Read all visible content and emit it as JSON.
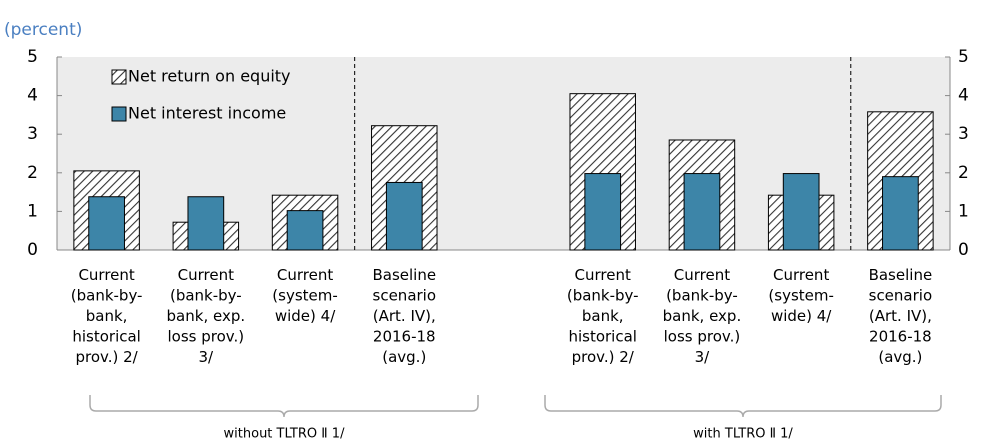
{
  "chart_data": {
    "type": "bar",
    "subtitle": "(percent)",
    "categories": [
      "Current\n(bank-by-\nbank,\nhistorical\nprov.) 2/",
      "Current\n(bank-by-\nbank, exp.\nloss prov.)\n3/",
      "Current\n(system-\nwide) 4/",
      "Baseline\nscenario\n(Art. IV),\n2016-18\n(avg.)",
      null,
      "Current\n(bank-by-\nbank,\nhistorical\nprov.) 2/",
      "Current\n(bank-by-\nbank, exp.\nloss prov.)\n3/",
      "Current\n(system-\nwide) 4/",
      "Baseline\nscenario\n(Art. IV),\n2016-18\n(avg.)"
    ],
    "series": [
      {
        "name": "Net return on equity",
        "color": "hatch",
        "values": [
          2.05,
          0.72,
          1.42,
          3.22,
          null,
          4.05,
          2.85,
          1.42,
          3.58
        ]
      },
      {
        "name": "Net interest income",
        "color": "#3d85a8",
        "values": [
          1.38,
          1.38,
          1.02,
          1.75,
          null,
          1.98,
          1.98,
          1.98,
          1.9
        ]
      }
    ],
    "ylim": [
      0,
      5
    ],
    "yticks": [
      0,
      1,
      2,
      3,
      4,
      5
    ],
    "y2lim": [
      0,
      5
    ],
    "y2ticks": [
      0,
      1,
      2,
      3,
      4,
      5
    ],
    "group_labels": [
      "without TLTRO Ⅱ 1/",
      "with TLTRO Ⅱ 1/"
    ],
    "legend": "upper left"
  }
}
